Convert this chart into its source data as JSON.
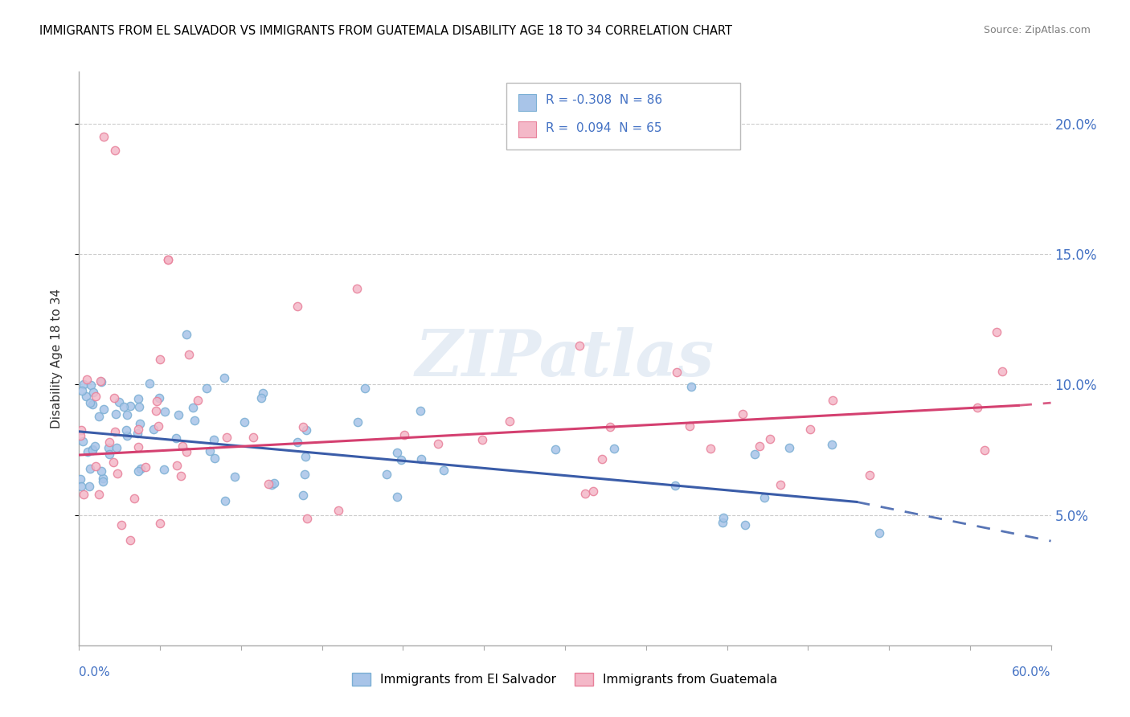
{
  "title": "IMMIGRANTS FROM EL SALVADOR VS IMMIGRANTS FROM GUATEMALA DISABILITY AGE 18 TO 34 CORRELATION CHART",
  "source": "Source: ZipAtlas.com",
  "ylabel": "Disability Age 18 to 34",
  "y_ticks_right": [
    5.0,
    10.0,
    15.0,
    20.0
  ],
  "xlim": [
    0.0,
    0.6
  ],
  "ylim": [
    0.0,
    0.22
  ],
  "series1_name": "Immigrants from El Salvador",
  "series2_name": "Immigrants from Guatemala",
  "series1_color": "#a8c4e8",
  "series2_color": "#f4b8c8",
  "series1_edge_color": "#7bafd4",
  "series2_edge_color": "#e8809a",
  "series1_line_color": "#3a5ca8",
  "series2_line_color": "#d44070",
  "series1_R": -0.308,
  "series2_R": 0.094,
  "series1_N": 86,
  "series2_N": 65,
  "watermark_text": "ZIPatlas",
  "background_color": "#ffffff",
  "grid_color": "#cccccc",
  "right_axis_color": "#4472c4",
  "title_color": "#000000",
  "source_color": "#808080",
  "line1_x0": 0.0,
  "line1_y0": 0.082,
  "line1_x1": 0.48,
  "line1_y1": 0.055,
  "line1_xdash_end": 0.6,
  "line1_ydash_end": 0.04,
  "line2_x0": 0.0,
  "line2_y0": 0.073,
  "line2_x1": 0.58,
  "line2_y1": 0.092,
  "line2_xdash_end": 0.6,
  "line2_ydash_end": 0.093
}
